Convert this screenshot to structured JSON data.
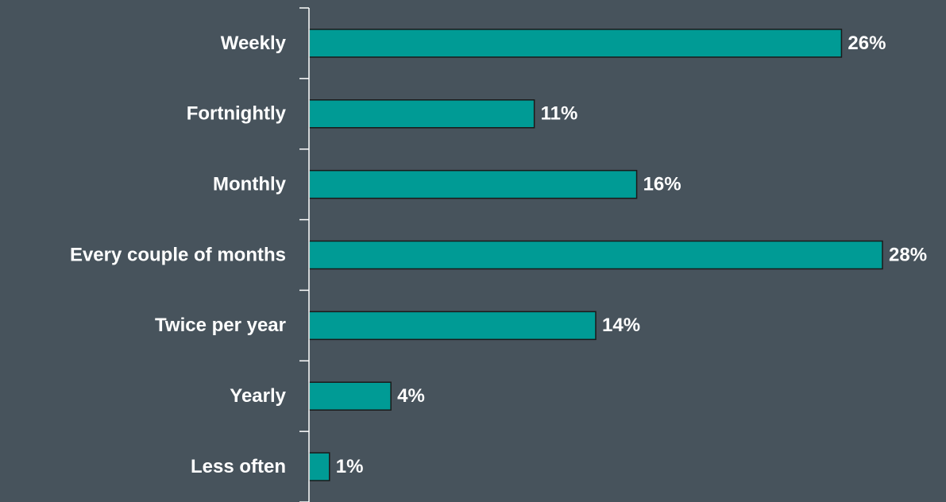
{
  "chart_data": {
    "type": "barh",
    "categories": [
      "Weekly",
      "Fortnightly",
      "Monthly",
      "Every couple of months",
      "Twice per year",
      "Yearly",
      "Less often"
    ],
    "values": [
      26,
      11,
      16,
      28,
      14,
      4,
      1
    ],
    "value_labels": [
      "26%",
      "11%",
      "16%",
      "28%",
      "14%",
      "4%",
      "1%"
    ],
    "color": "#009b95"
  }
}
